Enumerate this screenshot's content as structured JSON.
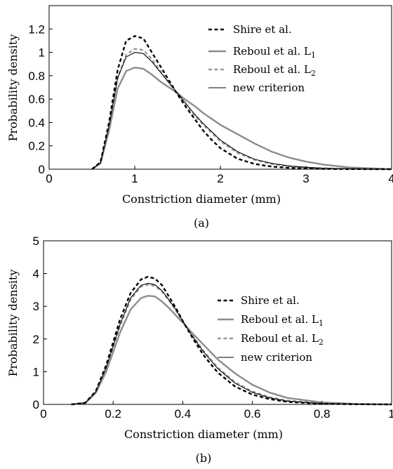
{
  "colors": {
    "shire": "#000000",
    "reboul_l1": "#8c8c8c",
    "reboul_l2": "#9a9a9a",
    "new_criterion": "#000000"
  },
  "chart_data": [
    {
      "type": "line",
      "caption": "(a)",
      "xlabel": "Constriction diameter (mm)",
      "ylabel": "Probability density",
      "xlim": [
        0,
        4
      ],
      "ylim": [
        0,
        1.4
      ],
      "xticks": [
        "0",
        "1",
        "2",
        "3",
        "4"
      ],
      "yticks": [
        "0",
        "0.2",
        "0.4",
        "0.6",
        "0.8",
        "1",
        "1.2"
      ],
      "grid": false,
      "legend_position": "top-right",
      "series": [
        {
          "name": "Shire et al.",
          "style": "dashed",
          "x": [
            0.5,
            0.6,
            0.7,
            0.8,
            0.9,
            1.0,
            1.1,
            1.2,
            1.3,
            1.4,
            1.5,
            1.6,
            1.7,
            1.8,
            1.9,
            2.0,
            2.2,
            2.4,
            2.6,
            2.8,
            3.0,
            3.2,
            3.5,
            4.0
          ],
          "y": [
            0,
            0.06,
            0.4,
            0.85,
            1.1,
            1.14,
            1.12,
            1.0,
            0.88,
            0.76,
            0.64,
            0.53,
            0.43,
            0.33,
            0.25,
            0.18,
            0.09,
            0.045,
            0.022,
            0.012,
            0.006,
            0.003,
            0.001,
            0
          ]
        },
        {
          "name": "Reboul et al. L_1",
          "style": "solid",
          "x": [
            0.5,
            0.6,
            0.7,
            0.8,
            0.9,
            1.0,
            1.1,
            1.2,
            1.3,
            1.4,
            1.5,
            1.6,
            1.7,
            1.8,
            1.9,
            2.0,
            2.2,
            2.4,
            2.6,
            2.8,
            3.0,
            3.2,
            3.5,
            4.0
          ],
          "y": [
            0,
            0.05,
            0.33,
            0.69,
            0.84,
            0.87,
            0.86,
            0.81,
            0.75,
            0.7,
            0.65,
            0.59,
            0.54,
            0.48,
            0.43,
            0.38,
            0.3,
            0.22,
            0.15,
            0.1,
            0.065,
            0.04,
            0.015,
            0
          ]
        },
        {
          "name": "Reboul et al. L_2",
          "style": "dashed",
          "x": [
            0.5,
            0.6,
            0.7,
            0.8,
            0.9,
            1.0,
            1.1,
            1.2,
            1.3,
            1.4,
            1.5,
            1.6,
            1.7,
            1.8,
            1.9,
            2.0,
            2.2,
            2.4,
            2.6,
            2.8,
            3.0,
            3.2,
            3.5,
            4.0
          ],
          "y": [
            0,
            0.055,
            0.37,
            0.78,
            0.98,
            1.03,
            1.02,
            0.94,
            0.84,
            0.74,
            0.64,
            0.55,
            0.46,
            0.38,
            0.31,
            0.24,
            0.14,
            0.08,
            0.045,
            0.025,
            0.014,
            0.008,
            0.003,
            0
          ]
        },
        {
          "name": "new criterion",
          "style": "solid-thin",
          "x": [
            0.5,
            0.6,
            0.7,
            0.8,
            0.9,
            1.0,
            1.1,
            1.2,
            1.3,
            1.4,
            1.5,
            1.6,
            1.7,
            1.8,
            1.9,
            2.0,
            2.2,
            2.4,
            2.6,
            2.8,
            3.0,
            3.2,
            3.5,
            4.0
          ],
          "y": [
            0,
            0.055,
            0.37,
            0.78,
            0.96,
            1.0,
            0.99,
            0.92,
            0.83,
            0.74,
            0.65,
            0.56,
            0.47,
            0.39,
            0.32,
            0.25,
            0.15,
            0.085,
            0.05,
            0.028,
            0.016,
            0.009,
            0.003,
            0
          ]
        }
      ]
    },
    {
      "type": "line",
      "caption": "(b)",
      "xlabel": "Constriction diameter (mm)",
      "ylabel": "Probability density",
      "xlim": [
        0,
        1
      ],
      "ylim": [
        0,
        5
      ],
      "xticks": [
        "0",
        "0.2",
        "0.4",
        "0.6",
        "0.8",
        "1"
      ],
      "yticks": [
        "0",
        "1",
        "2",
        "3",
        "4",
        "5"
      ],
      "grid": false,
      "legend_position": "top-right",
      "series": [
        {
          "name": "Shire et al.",
          "style": "dashed",
          "x": [
            0.08,
            0.12,
            0.15,
            0.18,
            0.2,
            0.22,
            0.25,
            0.28,
            0.3,
            0.32,
            0.34,
            0.36,
            0.38,
            0.4,
            0.43,
            0.46,
            0.5,
            0.55,
            0.6,
            0.65,
            0.7,
            0.8,
            0.9,
            1.0
          ],
          "y": [
            0,
            0.05,
            0.4,
            1.2,
            1.9,
            2.6,
            3.4,
            3.82,
            3.9,
            3.85,
            3.65,
            3.3,
            2.95,
            2.55,
            2.0,
            1.5,
            0.98,
            0.55,
            0.3,
            0.16,
            0.08,
            0.02,
            0.005,
            0
          ]
        },
        {
          "name": "Reboul et al. L_1",
          "style": "solid",
          "x": [
            0.08,
            0.12,
            0.15,
            0.18,
            0.2,
            0.22,
            0.25,
            0.28,
            0.3,
            0.32,
            0.34,
            0.36,
            0.38,
            0.4,
            0.43,
            0.46,
            0.5,
            0.55,
            0.6,
            0.65,
            0.7,
            0.8,
            0.9,
            1.0
          ],
          "y": [
            0,
            0.04,
            0.35,
            1.0,
            1.6,
            2.2,
            2.9,
            3.25,
            3.32,
            3.3,
            3.15,
            2.95,
            2.72,
            2.5,
            2.15,
            1.82,
            1.38,
            0.95,
            0.6,
            0.36,
            0.2,
            0.06,
            0.015,
            0
          ]
        },
        {
          "name": "Reboul et al. L_2",
          "style": "dashed",
          "x": [
            0.08,
            0.12,
            0.15,
            0.18,
            0.2,
            0.22,
            0.25,
            0.28,
            0.3,
            0.32,
            0.34,
            0.36,
            0.38,
            0.4,
            0.43,
            0.46,
            0.5,
            0.55,
            0.6,
            0.65,
            0.7,
            0.8,
            0.9,
            1.0
          ],
          "y": [
            0,
            0.05,
            0.38,
            1.1,
            1.75,
            2.4,
            3.2,
            3.6,
            3.66,
            3.62,
            3.45,
            3.18,
            2.88,
            2.53,
            2.07,
            1.63,
            1.13,
            0.68,
            0.4,
            0.22,
            0.12,
            0.03,
            0.008,
            0
          ]
        },
        {
          "name": "new criterion",
          "style": "solid-thin",
          "x": [
            0.08,
            0.12,
            0.15,
            0.18,
            0.2,
            0.22,
            0.25,
            0.28,
            0.3,
            0.32,
            0.34,
            0.36,
            0.38,
            0.4,
            0.43,
            0.46,
            0.5,
            0.55,
            0.6,
            0.65,
            0.7,
            0.8,
            0.9,
            1.0
          ],
          "y": [
            0,
            0.05,
            0.38,
            1.12,
            1.78,
            2.45,
            3.25,
            3.64,
            3.7,
            3.66,
            3.48,
            3.2,
            2.9,
            2.55,
            2.05,
            1.6,
            1.1,
            0.65,
            0.37,
            0.2,
            0.1,
            0.025,
            0.006,
            0
          ]
        }
      ]
    }
  ],
  "legend_entries": [
    {
      "main": "Shire et al.",
      "sub": ""
    },
    {
      "main": "Reboul et al. L",
      "sub": "1"
    },
    {
      "main": "Reboul et al. L",
      "sub": "2"
    },
    {
      "main": "new criterion",
      "sub": ""
    }
  ]
}
